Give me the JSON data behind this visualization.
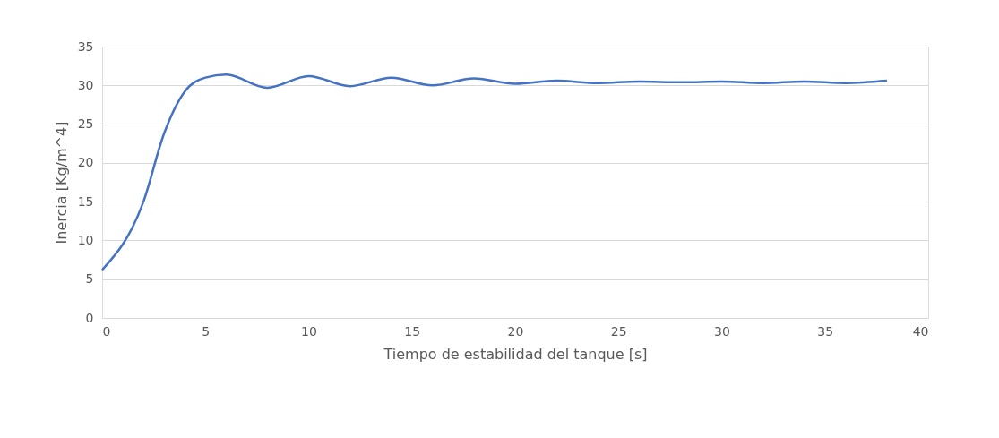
{
  "chart_data": {
    "type": "line",
    "xlabel": "Tiempo de estabilidad del tanque [s]",
    "ylabel": "Inercia [Kg/m^4]",
    "x": [
      0,
      2,
      3,
      4,
      5,
      6,
      8,
      10,
      12,
      14,
      16,
      18,
      20,
      22,
      24,
      26,
      28,
      30,
      32,
      34,
      36,
      38
    ],
    "series": [
      {
        "color": "#4472c4",
        "values": [
          6.2,
          15,
          23.8,
          29.2,
          31,
          31.4,
          29.7,
          31.2,
          29.9,
          31.0,
          30.0,
          30.9,
          30.2,
          30.6,
          30.3,
          30.5,
          30.4,
          30.5,
          30.3,
          30.5,
          30.3,
          30.6
        ]
      }
    ],
    "xlim": [
      0,
      40
    ],
    "xticks": [
      0,
      5,
      10,
      15,
      20,
      25,
      30,
      35,
      40
    ],
    "ylim": [
      0,
      35
    ],
    "yticks": [
      0,
      5,
      10,
      15,
      20,
      25,
      30,
      35
    ],
    "grid": "y",
    "legend": false,
    "marker": "none",
    "line_style": "solid"
  }
}
